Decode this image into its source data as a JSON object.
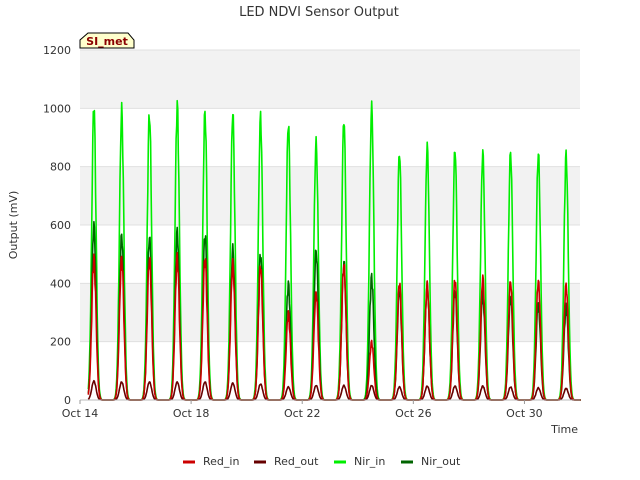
{
  "chart_data": {
    "type": "line",
    "title": "LED NDVI Sensor Output",
    "xlabel": "Time",
    "ylabel": "Output (mV)",
    "site_badge": "SI_met",
    "xlim": [
      "Oct 14",
      "Nov 1"
    ],
    "ylim": [
      0,
      1200
    ],
    "y_ticks": [
      0,
      200,
      400,
      600,
      800,
      1000,
      1200
    ],
    "x_ticks": [
      {
        "day": 14,
        "label": "Oct 14"
      },
      {
        "day": 18,
        "label": "Oct 18"
      },
      {
        "day": 22,
        "label": "Oct 22"
      },
      {
        "day": 26,
        "label": "Oct 26"
      },
      {
        "day": 30,
        "label": "Oct 30"
      }
    ],
    "grid": true,
    "legend_position": "bottom",
    "days": [
      "Oct 14",
      "Oct 15",
      "Oct 16",
      "Oct 17",
      "Oct 18",
      "Oct 19",
      "Oct 20",
      "Oct 21",
      "Oct 22",
      "Oct 23",
      "Oct 24",
      "Oct 25",
      "Oct 26",
      "Oct 27",
      "Oct 28",
      "Oct 29",
      "Oct 30",
      "Oct 31"
    ],
    "peak_time_of_day": 0.5,
    "series": [
      {
        "name": "Red_in",
        "color": "#cc0000",
        "daily_peaks": [
          490,
          495,
          495,
          495,
          490,
          475,
          465,
          300,
          375,
          470,
          200,
          405,
          400,
          415,
          420,
          410,
          410,
          395
        ]
      },
      {
        "name": "Red_out",
        "color": "#660000",
        "daily_peaks": [
          65,
          62,
          62,
          62,
          62,
          58,
          55,
          45,
          50,
          50,
          50,
          45,
          48,
          48,
          48,
          45,
          42,
          40
        ]
      },
      {
        "name": "Nir_in",
        "color": "#00ee00",
        "daily_peaks": [
          1005,
          1000,
          990,
          1010,
          990,
          990,
          970,
          950,
          885,
          965,
          1005,
          850,
          870,
          860,
          850,
          850,
          850,
          840
        ]
      },
      {
        "name": "Nir_out",
        "color": "#006400",
        "daily_peaks": [
          600,
          570,
          565,
          580,
          570,
          525,
          505,
          400,
          520,
          480,
          425,
          380,
          400,
          380,
          370,
          360,
          335,
          325
        ]
      }
    ]
  }
}
